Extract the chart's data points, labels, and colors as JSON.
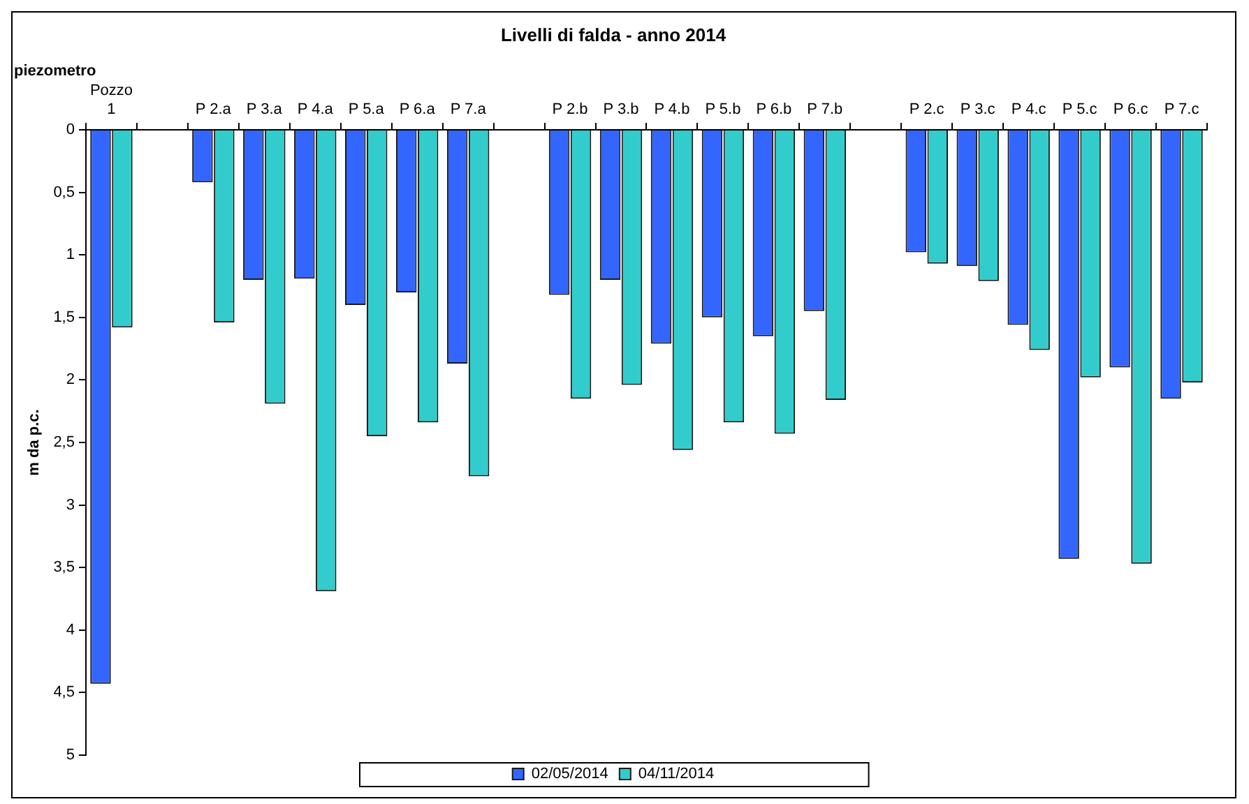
{
  "chart_data": {
    "type": "bar",
    "title": "Livelli di falda - anno 2014",
    "xlabel": "piezometro",
    "ylabel": "m da p.c.",
    "categories": [
      "Pozzo 1",
      null,
      "P 2.a",
      "P 3.a",
      "P 4.a",
      "P 5.a",
      "P 6.a",
      "P 7.a",
      null,
      "P 2.b",
      "P 3.b",
      "P 4.b",
      "P 5.b",
      "P 6.b",
      "P 7.b",
      null,
      "P 2.c",
      "P 3.c",
      "P 4.c",
      "P 5.c",
      "P 6.c",
      "P 7.c"
    ],
    "series": [
      {
        "name": "02/05/2014",
        "color": "#3366ff",
        "values": [
          4.43,
          null,
          0.42,
          1.2,
          1.19,
          1.4,
          1.3,
          1.87,
          null,
          1.32,
          1.2,
          1.71,
          1.5,
          1.65,
          1.45,
          null,
          0.98,
          1.09,
          1.56,
          3.43,
          1.9,
          2.15
        ]
      },
      {
        "name": "04/11/2014",
        "color": "#33cccc",
        "values": [
          1.58,
          null,
          1.54,
          2.19,
          3.69,
          2.45,
          2.34,
          2.77,
          null,
          2.15,
          2.04,
          2.56,
          2.34,
          2.43,
          2.16,
          null,
          1.07,
          1.21,
          1.76,
          1.98,
          3.47,
          2.02
        ]
      }
    ],
    "ylim": [
      5,
      0
    ],
    "yticks": [
      0,
      {
        "value": 0.5,
        "label": "0,5"
      },
      1,
      {
        "value": 1.5,
        "label": "1,5"
      },
      2,
      {
        "value": 2.5,
        "label": "2,5"
      },
      3,
      {
        "value": 3.5,
        "label": "3,5"
      },
      4,
      {
        "value": 4.5,
        "label": "4,5"
      },
      5
    ],
    "grid": false,
    "legend": "bottom"
  }
}
